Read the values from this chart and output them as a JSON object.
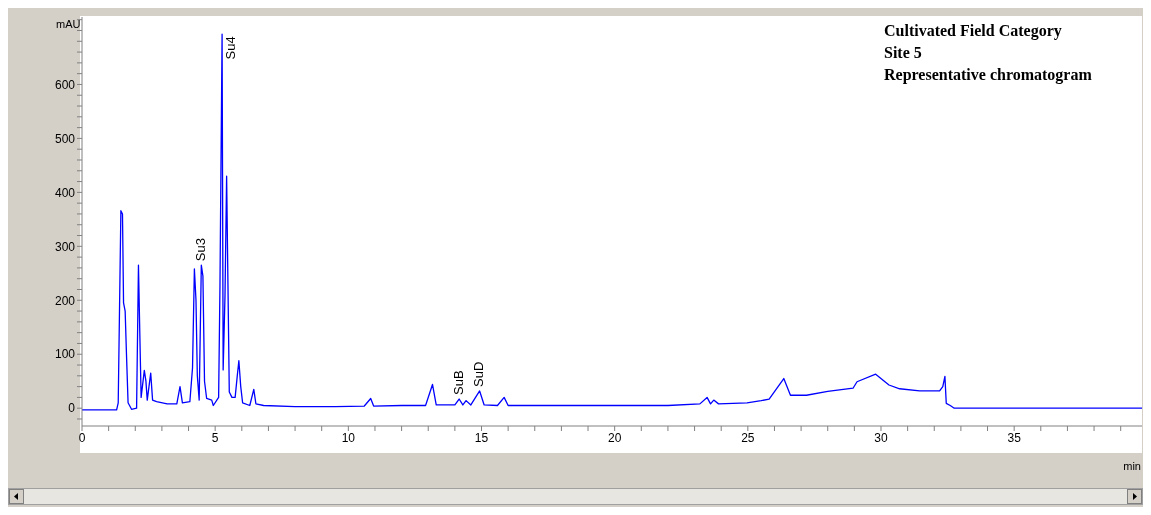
{
  "chart_data": {
    "type": "line",
    "title": "Cultivated Field Category",
    "subtitle": "Site 5",
    "ylabel": "mAU",
    "xlabel": "min",
    "marker": "none",
    "line_style": "solid",
    "xlim": [
      0,
      39.8
    ],
    "ylim": [
      -33,
      725
    ],
    "xticks": [
      0,
      {
        "value": 1,
        "label": null
      },
      {
        "value": 2,
        "label": null
      },
      {
        "value": 3,
        "label": null
      },
      {
        "value": 4,
        "label": null
      },
      5,
      {
        "value": 6,
        "label": null
      },
      {
        "value": 7,
        "label": null
      },
      {
        "value": 8,
        "label": null
      },
      {
        "value": 9,
        "label": null
      },
      10,
      {
        "value": 11,
        "label": null
      },
      {
        "value": 12,
        "label": null
      },
      {
        "value": 13,
        "label": null
      },
      {
        "value": 14,
        "label": null
      },
      15,
      {
        "value": 16,
        "label": null
      },
      {
        "value": 17,
        "label": null
      },
      {
        "value": 18,
        "label": null
      },
      {
        "value": 19,
        "label": null
      },
      20,
      {
        "value": 21,
        "label": null
      },
      {
        "value": 22,
        "label": null
      },
      {
        "value": 23,
        "label": null
      },
      {
        "value": 24,
        "label": null
      },
      25,
      {
        "value": 26,
        "label": null
      },
      {
        "value": 27,
        "label": null
      },
      {
        "value": 28,
        "label": null
      },
      {
        "value": 29,
        "label": null
      },
      30,
      {
        "value": 31,
        "label": null
      },
      {
        "value": 32,
        "label": null
      },
      {
        "value": 33,
        "label": null
      },
      {
        "value": 34,
        "label": null
      },
      35,
      {
        "value": 36,
        "label": null
      },
      {
        "value": 37,
        "label": null
      },
      {
        "value": 38,
        "label": null
      },
      {
        "value": 39,
        "label": null
      }
    ],
    "yticks": [
      {
        "value": -20,
        "label": null
      },
      0,
      {
        "value": 20,
        "label": null
      },
      {
        "value": 40,
        "label": null
      },
      {
        "value": 60,
        "label": null
      },
      {
        "value": 80,
        "label": null
      },
      100,
      {
        "value": 120,
        "label": null
      },
      {
        "value": 140,
        "label": null
      },
      {
        "value": 160,
        "label": null
      },
      {
        "value": 180,
        "label": null
      },
      200,
      {
        "value": 220,
        "label": null
      },
      {
        "value": 240,
        "label": null
      },
      {
        "value": 260,
        "label": null
      },
      {
        "value": 280,
        "label": null
      },
      300,
      {
        "value": 320,
        "label": null
      },
      {
        "value": 340,
        "label": null
      },
      {
        "value": 360,
        "label": null
      },
      {
        "value": 380,
        "label": null
      },
      400,
      {
        "value": 420,
        "label": null
      },
      {
        "value": 440,
        "label": null
      },
      {
        "value": 460,
        "label": null
      },
      {
        "value": 480,
        "label": null
      },
      500,
      {
        "value": 520,
        "label": null
      },
      {
        "value": 540,
        "label": null
      },
      {
        "value": 560,
        "label": null
      },
      {
        "value": 580,
        "label": null
      },
      600,
      {
        "value": 620,
        "label": null
      },
      {
        "value": 640,
        "label": null
      },
      {
        "value": 660,
        "label": null
      },
      {
        "value": 680,
        "label": null
      },
      {
        "value": 700,
        "label": null
      },
      {
        "value": 720,
        "label": null
      }
    ],
    "series": [
      {
        "color": "#0000ff",
        "x": [
          0,
          1.3,
          1.36,
          1.46,
          1.52,
          1.56,
          1.62,
          1.67,
          1.73,
          1.86,
          2.05,
          2.12,
          2.17,
          2.22,
          2.34,
          2.4,
          2.45,
          2.58,
          2.65,
          2.8,
          3.2,
          3.56,
          3.68,
          3.77,
          4.05,
          4.15,
          4.22,
          4.28,
          4.33,
          4.4,
          4.48,
          4.54,
          4.6,
          4.68,
          4.87,
          4.93,
          5.13,
          5.18,
          5.26,
          5.3,
          5.37,
          5.43,
          5.48,
          5.53,
          5.63,
          5.75,
          5.83,
          5.89,
          5.96,
          6.03,
          6.3,
          6.45,
          6.53,
          6.82,
          8,
          9.5,
          10.6,
          10.84,
          10.95,
          12,
          12.9,
          13.16,
          13.3,
          14,
          14.16,
          14.3,
          14.42,
          14.6,
          14.93,
          15.1,
          15.6,
          15.85,
          16,
          18,
          20,
          22,
          23.2,
          23.47,
          23.6,
          23.72,
          23.9,
          24.97,
          25.5,
          25.8,
          26.35,
          26.6,
          27.2,
          28,
          28.95,
          29.1,
          29.8,
          30.3,
          30.7,
          31.45,
          32.2,
          32.32,
          32.4,
          32.45,
          32.6,
          32.75,
          39.8
        ],
        "values": [
          -3,
          -3,
          10,
          366,
          360,
          195,
          180,
          100,
          10,
          -2,
          0,
          265,
          140,
          20,
          70,
          50,
          15,
          65,
          15,
          12,
          8,
          8,
          40,
          10,
          12,
          75,
          258,
          200,
          60,
          15,
          265,
          245,
          50,
          18,
          15,
          5,
          20,
          225,
          693,
          71,
          210,
          430,
          230,
          30,
          20,
          20,
          60,
          88,
          40,
          10,
          5,
          35,
          8,
          5,
          3,
          3,
          4,
          18,
          4,
          5,
          5,
          44,
          6,
          6,
          17,
          6,
          14,
          6,
          32,
          6,
          5,
          20,
          5,
          5,
          5,
          5,
          8,
          20,
          8,
          15,
          8,
          10,
          14,
          17,
          55,
          24,
          24,
          31,
          37,
          49,
          63,
          43,
          36,
          32,
          32,
          40,
          59,
          9,
          5,
          0,
          0
        ]
      }
    ],
    "annotations": [
      {
        "text": "Su3",
        "x": 4.48,
        "y": 265
      },
      {
        "text": "Su4",
        "x": 5.26,
        "y": 693
      },
      {
        "text": "SuB",
        "x": 14.16,
        "y": 17
      },
      {
        "text": "SuD",
        "x": 14.93,
        "y": 32
      },
      "Representative chromatogram"
    ]
  }
}
